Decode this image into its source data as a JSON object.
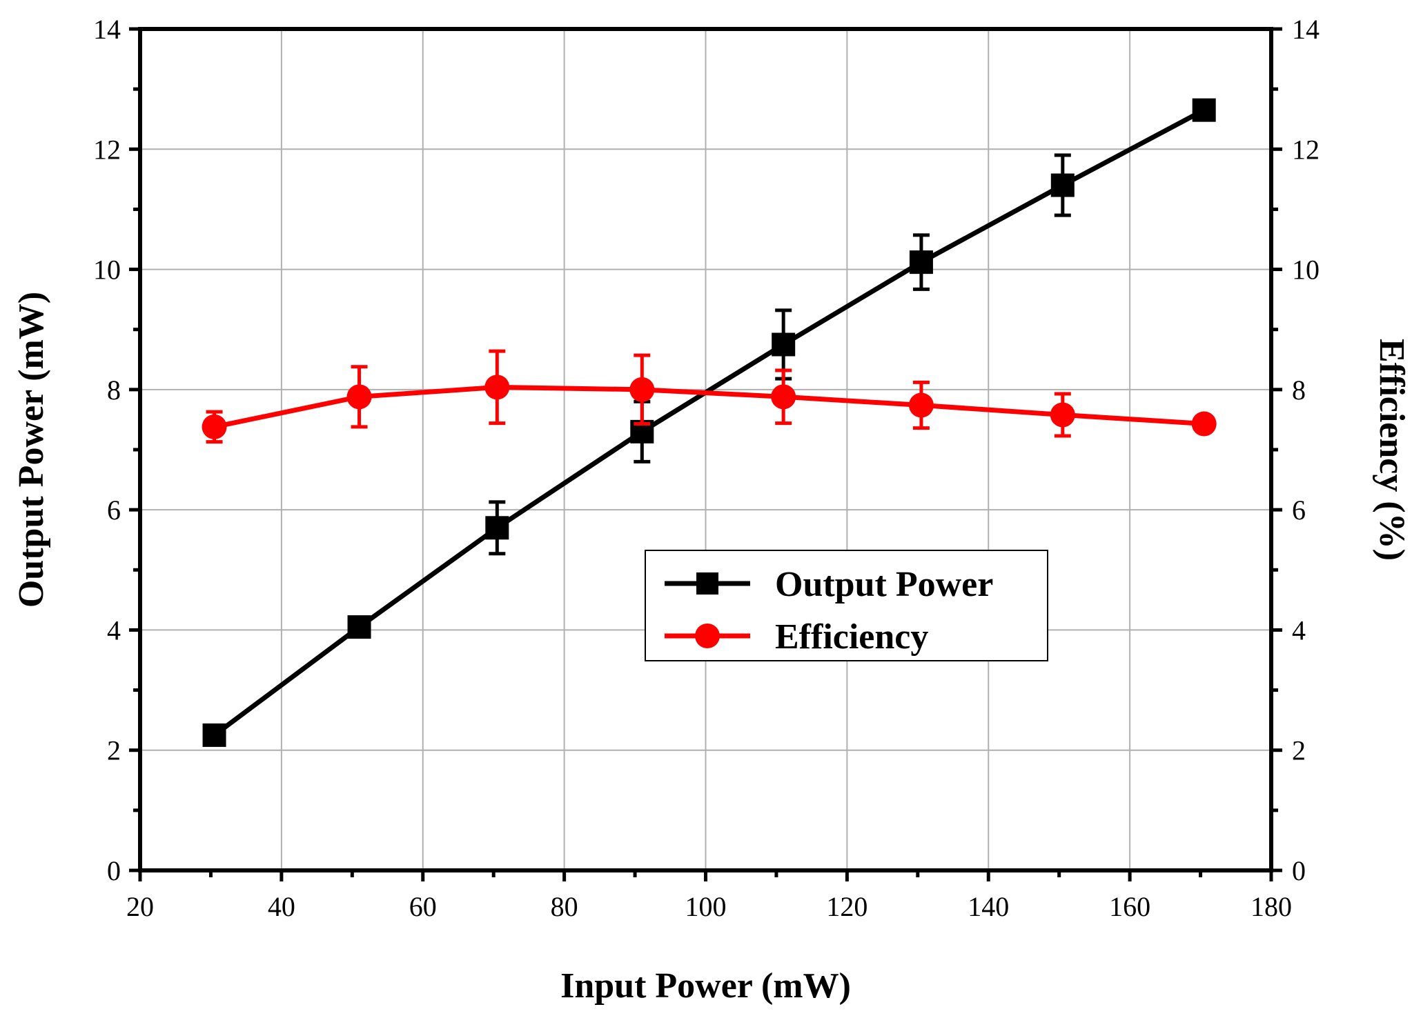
{
  "chart_data": {
    "type": "line",
    "xlabel": "Input Power (mW)",
    "ylabel": "Output Power (mW)",
    "y2label": "Efficiency (%)",
    "xlim": [
      20,
      180
    ],
    "ylim": [
      0,
      14
    ],
    "y2lim": [
      0,
      14
    ],
    "xticks": [
      20,
      40,
      60,
      80,
      100,
      120,
      140,
      160,
      180
    ],
    "yticks": [
      0,
      2,
      4,
      6,
      8,
      10,
      12,
      14
    ],
    "y2ticks": [
      0,
      2,
      4,
      6,
      8,
      10,
      12,
      14
    ],
    "grid": true,
    "legend_position": "center-right",
    "x": [
      30.5,
      51,
      70.5,
      91,
      111,
      130.5,
      150.5,
      170.5
    ],
    "series": [
      {
        "name": "Output Power",
        "axis": "left",
        "marker": "square",
        "color": "#000000",
        "values": [
          2.25,
          4.05,
          5.7,
          7.3,
          8.75,
          10.12,
          11.4,
          12.65
        ],
        "errors": [
          0.1,
          0.15,
          0.43,
          0.5,
          0.57,
          0.45,
          0.5,
          0.1
        ]
      },
      {
        "name": "Efficiency",
        "axis": "right",
        "marker": "circle",
        "color": "#ff0000",
        "values": [
          7.38,
          7.88,
          8.04,
          8.0,
          7.88,
          7.74,
          7.58,
          7.43
        ],
        "errors": [
          0.25,
          0.5,
          0.6,
          0.57,
          0.44,
          0.38,
          0.35,
          0.08
        ]
      }
    ]
  }
}
